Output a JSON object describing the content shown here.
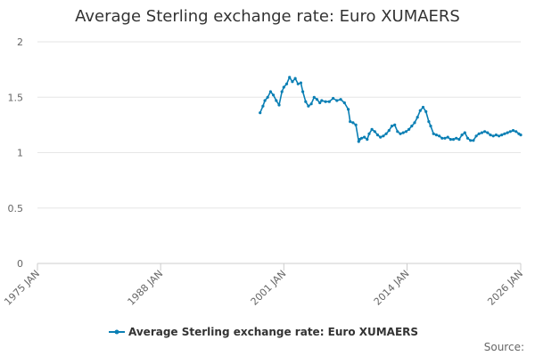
{
  "chart_data": {
    "type": "line",
    "title": "Average Sterling exchange rate: Euro XUMAERS",
    "xlabel": "",
    "ylabel": "",
    "xlim": [
      1975,
      2026
    ],
    "ylim": [
      0,
      2
    ],
    "y_ticks": [
      0,
      0.5,
      1,
      1.5,
      2
    ],
    "y_tick_labels": [
      "0",
      "0.5",
      "1",
      "1.5",
      "2"
    ],
    "x_ticks": [
      1975,
      1988,
      2001,
      2014,
      2026
    ],
    "x_tick_labels": [
      "1975 JAN",
      "1988 JAN",
      "2001 JAN",
      "2014 JAN",
      "2026 JAN"
    ],
    "grid": true,
    "legend_position": "bottom-center",
    "series": [
      {
        "name": "Average Sterling exchange rate: Euro XUMAERS",
        "color": "#0a7fb4",
        "x": [
          1998.5,
          1998.8,
          1999.0,
          1999.3,
          1999.6,
          1999.9,
          2000.2,
          2000.5,
          2000.8,
          2001.0,
          2001.3,
          2001.6,
          2001.9,
          2002.2,
          2002.5,
          2002.8,
          2003.0,
          2003.3,
          2003.6,
          2003.9,
          2004.2,
          2004.5,
          2004.8,
          2005.0,
          2005.4,
          2005.8,
          2006.2,
          2006.6,
          2007.0,
          2007.4,
          2007.8,
          2008.0,
          2008.3,
          2008.6,
          2008.9,
          2009.0,
          2009.2,
          2009.5,
          2009.8,
          2010.0,
          2010.3,
          2010.6,
          2010.9,
          2011.2,
          2011.5,
          2011.8,
          2012.1,
          2012.4,
          2012.7,
          2013.0,
          2013.3,
          2013.6,
          2013.9,
          2014.2,
          2014.5,
          2014.8,
          2015.1,
          2015.4,
          2015.7,
          2016.0,
          2016.3,
          2016.5,
          2016.8,
          2017.1,
          2017.4,
          2017.7,
          2018.0,
          2018.3,
          2018.6,
          2018.9,
          2019.2,
          2019.5,
          2019.8,
          2020.1,
          2020.4,
          2020.7,
          2021.0,
          2021.3,
          2021.6,
          2021.9,
          2022.2,
          2022.5,
          2022.8,
          2023.1,
          2023.4,
          2023.7,
          2024.0,
          2024.3,
          2024.6,
          2024.9,
          2025.2,
          2025.5,
          2025.8,
          2026.0
        ],
        "values": [
          1.36,
          1.42,
          1.47,
          1.5,
          1.55,
          1.52,
          1.47,
          1.43,
          1.55,
          1.59,
          1.62,
          1.68,
          1.64,
          1.67,
          1.62,
          1.63,
          1.55,
          1.46,
          1.42,
          1.44,
          1.5,
          1.48,
          1.45,
          1.47,
          1.46,
          1.46,
          1.49,
          1.47,
          1.48,
          1.45,
          1.39,
          1.28,
          1.27,
          1.25,
          1.1,
          1.12,
          1.13,
          1.14,
          1.12,
          1.17,
          1.21,
          1.19,
          1.16,
          1.14,
          1.15,
          1.17,
          1.2,
          1.24,
          1.25,
          1.19,
          1.17,
          1.18,
          1.19,
          1.21,
          1.24,
          1.27,
          1.32,
          1.38,
          1.41,
          1.37,
          1.28,
          1.24,
          1.17,
          1.16,
          1.15,
          1.13,
          1.13,
          1.14,
          1.12,
          1.12,
          1.13,
          1.12,
          1.16,
          1.18,
          1.13,
          1.11,
          1.11,
          1.15,
          1.17,
          1.18,
          1.19,
          1.18,
          1.16,
          1.15,
          1.16,
          1.15,
          1.16,
          1.17,
          1.18,
          1.19,
          1.2,
          1.19,
          1.17,
          1.16
        ]
      }
    ],
    "source_label": "Source:"
  }
}
